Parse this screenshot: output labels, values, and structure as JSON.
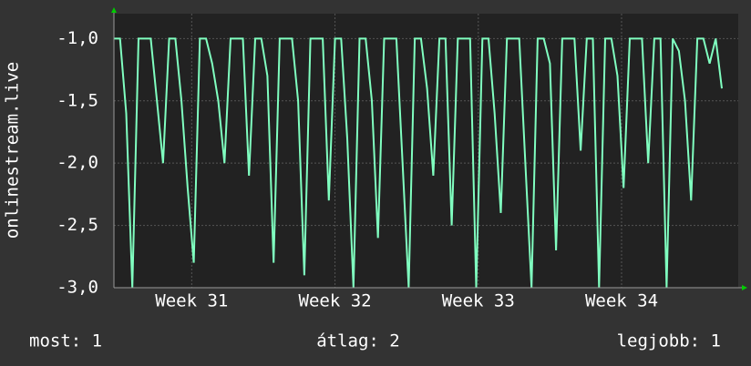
{
  "chart_data": {
    "type": "line",
    "y_label": "onlinestream.live",
    "x": [
      0,
      0.3,
      0.6,
      0.9,
      1.2,
      1.5,
      1.8,
      2.1,
      2.4,
      2.7,
      3,
      3.3,
      3.6,
      3.9,
      4.2,
      4.5,
      4.8,
      5.1,
      5.4,
      5.7,
      6,
      6.3,
      6.6,
      6.9,
      7.2,
      7.5,
      7.8,
      8.1,
      8.4,
      8.7,
      9,
      9.3,
      9.6,
      9.9,
      10.2,
      10.5,
      10.8,
      11.1,
      11.4,
      11.7,
      12,
      12.3,
      12.6,
      12.9,
      13.2,
      13.5,
      13.8,
      14.1,
      14.4,
      14.7,
      15,
      15.3,
      15.6,
      15.9,
      16.2,
      16.5,
      16.8,
      17.1,
      17.4,
      17.7,
      18,
      18.3,
      18.6,
      18.9,
      19.2,
      19.5,
      19.8,
      20.1,
      20.4,
      20.7,
      21,
      21.3,
      21.6,
      21.9,
      22.2,
      22.5,
      22.8,
      23.1,
      23.4,
      23.7,
      24,
      24.3,
      24.6,
      24.9,
      25.2,
      25.5,
      25.8,
      26.1,
      26.4,
      26.7,
      27,
      27.3,
      27.6,
      27.9,
      28.2,
      28.5,
      28.8,
      29.1,
      29.4,
      29.7
    ],
    "values": [
      -1,
      -1,
      -1.6,
      -3,
      -1,
      -1,
      -1,
      -1.5,
      -2,
      -1,
      -1,
      -1.5,
      -2.2,
      -2.8,
      -1,
      -1,
      -1.2,
      -1.5,
      -2,
      -1,
      -1,
      -1,
      -2.1,
      -1,
      -1,
      -1.3,
      -2.8,
      -1,
      -1,
      -1,
      -1.5,
      -2.9,
      -1,
      -1,
      -1,
      -2.3,
      -1,
      -1,
      -1.8,
      -3,
      -1,
      -1,
      -1.5,
      -2.6,
      -1,
      -1,
      -1,
      -2,
      -3,
      -1,
      -1,
      -1.4,
      -2.1,
      -1,
      -1,
      -2.5,
      -1,
      -1,
      -1,
      -3,
      -1,
      -1,
      -1.6,
      -2.4,
      -1,
      -1,
      -1,
      -2,
      -3,
      -1,
      -1,
      -1.2,
      -2.7,
      -1,
      -1,
      -1,
      -1.9,
      -1,
      -1,
      -3,
      -1,
      -1,
      -1.3,
      -2.2,
      -1,
      -1,
      -1,
      -2,
      -1,
      -1,
      -3,
      -1,
      -1.1,
      -1.5,
      -2.3,
      -1,
      -1,
      -1.2,
      -1,
      -1.4
    ],
    "color": "#80ffc0",
    "xlim": [
      0,
      30.5
    ],
    "xticks": [
      {
        "value": 3.8,
        "label": "Week 31"
      },
      {
        "value": 10.8,
        "label": "Week 32"
      },
      {
        "value": 17.8,
        "label": "Week 33"
      },
      {
        "value": 24.8,
        "label": "Week 34"
      }
    ],
    "ylim": [
      -3.0,
      -0.8
    ],
    "yticks": [
      {
        "value": -3.0,
        "label": "-3,0"
      },
      {
        "value": -2.5,
        "label": "-2,5"
      },
      {
        "value": -2.0,
        "label": "-2,0"
      },
      {
        "value": -1.5,
        "label": "-1,5"
      },
      {
        "value": -1.0,
        "label": "-1,0"
      }
    ],
    "grid": true,
    "footer": [
      "most: 1",
      "átlag: 2",
      "legjobb: 1"
    ]
  }
}
